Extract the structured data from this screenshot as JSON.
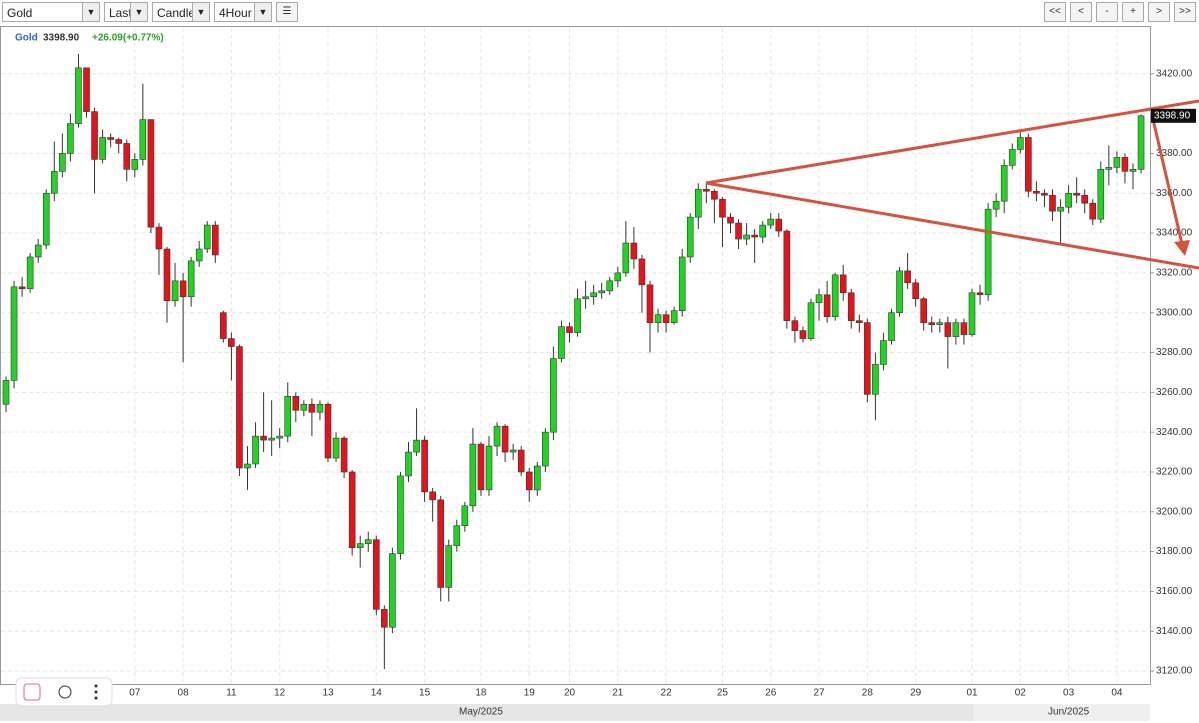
{
  "toolbar": {
    "symbol": "Gold",
    "price_field": "Last",
    "chart_style": "Candle",
    "interval": "4Hour",
    "nav_buttons": [
      "<<",
      "<",
      "-",
      "+",
      ">",
      ">>"
    ]
  },
  "chart_data": {
    "type": "candlestick",
    "header": {
      "symbol": "Gold",
      "last": "3398.90",
      "change": "+26.09(+0.77%)"
    },
    "categories": [
      null,
      null,
      null,
      null,
      null,
      null,
      null,
      null,
      null,
      null,
      null,
      null,
      null,
      null,
      null,
      null,
      "07",
      null,
      null,
      null,
      null,
      null,
      "08",
      null,
      null,
      null,
      null,
      null,
      "11",
      null,
      null,
      null,
      null,
      null,
      "12",
      null,
      null,
      null,
      null,
      null,
      "13",
      null,
      null,
      null,
      null,
      null,
      "14",
      null,
      null,
      null,
      null,
      null,
      "15",
      null,
      null,
      null,
      null,
      null,
      null,
      "18",
      null,
      null,
      null,
      null,
      null,
      "19",
      null,
      null,
      null,
      null,
      "20",
      null,
      null,
      null,
      null,
      null,
      "21",
      null,
      null,
      null,
      null,
      null,
      "22",
      null,
      null,
      null,
      null,
      null,
      null,
      "25",
      null,
      null,
      null,
      null,
      null,
      "26",
      null,
      null,
      null,
      null,
      null,
      "27",
      null,
      null,
      null,
      null,
      null,
      "28",
      null,
      null,
      null,
      null,
      null,
      "29",
      null,
      null,
      null,
      null,
      null,
      null,
      "01",
      null,
      null,
      null,
      null,
      null,
      "02",
      null,
      null,
      null,
      null,
      null,
      "03",
      null,
      null,
      null,
      null,
      null,
      "04",
      null,
      null,
      null
    ],
    "periods": [
      {
        "label": "May/2025",
        "index": 59
      },
      {
        "label": "Jun/2025",
        "index": 132
      }
    ],
    "open": [
      3254,
      3266,
      3313,
      3312,
      3328,
      3334,
      3360,
      3371,
      3380,
      3395,
      3423,
      3401,
      3377,
      3388,
      3387,
      3385,
      3372,
      3377,
      3397,
      3343,
      3332,
      3306,
      3316,
      3308,
      3326,
      3332,
      3344,
      3300,
      3287,
      3283,
      3222,
      3224,
      3238,
      3236,
      3237,
      3238,
      3258,
      3251,
      3254,
      3250,
      3254,
      3227,
      3237,
      3220,
      3182,
      3184,
      3186,
      3151,
      3142,
      3179,
      3218,
      3230,
      3236,
      3210,
      3206,
      3162,
      3183,
      3193,
      3203,
      3234,
      3211,
      3233,
      3243,
      3230,
      3231,
      3220,
      3211,
      3223,
      3240,
      3277,
      3293,
      3290,
      3307,
      3308,
      3310,
      3311,
      3316,
      3320,
      3335,
      3327,
      3314,
      3295,
      3299,
      3295,
      3301,
      3328,
      3348,
      3362,
      3361,
      3357,
      3348,
      3345,
      3337,
      3339,
      3338,
      3344,
      3347,
      3341,
      3296,
      3291,
      3287,
      3305,
      3309,
      3298,
      3319,
      3310,
      3296,
      3295,
      3259,
      3274,
      3286,
      3300,
      3321,
      3315,
      3307,
      3295,
      3294,
      3295,
      3288,
      3295,
      3289,
      3310,
      3309,
      3352,
      3356,
      3374,
      3382,
      3388,
      3361,
      3360,
      3359,
      3351,
      3353,
      3360,
      3359,
      3355,
      3347,
      3372,
      3373,
      3378,
      3371,
      3372
    ],
    "high": [
      3268,
      3316,
      3318,
      3330,
      3337,
      3362,
      3386,
      3390,
      3400,
      3430,
      3423,
      3403,
      3392,
      3390,
      3388,
      3387,
      3380,
      3415,
      3397,
      3345,
      3333,
      3325,
      3320,
      3328,
      3336,
      3346,
      3346,
      3301,
      3290,
      3284,
      3233,
      3245,
      3260,
      3256,
      3242,
      3265,
      3260,
      3256,
      3257,
      3256,
      3255,
      3240,
      3238,
      3221,
      3188,
      3190,
      3188,
      3153,
      3182,
      3220,
      3235,
      3252,
      3238,
      3212,
      3208,
      3186,
      3196,
      3205,
      3242,
      3235,
      3238,
      3245,
      3244,
      3234,
      3233,
      3222,
      3225,
      3242,
      3283,
      3296,
      3295,
      3312,
      3316,
      3314,
      3315,
      3318,
      3323,
      3346,
      3343,
      3329,
      3316,
      3302,
      3301,
      3303,
      3332,
      3350,
      3365,
      3365,
      3362,
      3358,
      3350,
      3347,
      3345,
      3342,
      3346,
      3350,
      3350,
      3342,
      3298,
      3293,
      3307,
      3312,
      3316,
      3320,
      3324,
      3312,
      3299,
      3297,
      3280,
      3290,
      3302,
      3323,
      3330,
      3317,
      3308,
      3298,
      3297,
      3298,
      3297,
      3297,
      3312,
      3314,
      3355,
      3360,
      3377,
      3385,
      3391,
      3390,
      3366,
      3362,
      3362,
      3357,
      3364,
      3368,
      3362,
      3357,
      3376,
      3384,
      3381,
      3380,
      3375,
      3399.6
    ],
    "low": [
      3250,
      3262,
      3308,
      3310,
      3325,
      3332,
      3356,
      3368,
      3376,
      3393,
      3398,
      3360,
      3375,
      3383,
      3380,
      3366,
      3368,
      3374,
      3340,
      3319,
      3295,
      3303,
      3275,
      3303,
      3323,
      3330,
      3325,
      3285,
      3266,
      3218,
      3211,
      3222,
      3230,
      3228,
      3232,
      3235,
      3245,
      3248,
      3238,
      3246,
      3225,
      3225,
      3217,
      3178,
      3172,
      3180,
      3148,
      3121,
      3139,
      3176,
      3215,
      3228,
      3205,
      3195,
      3155,
      3155,
      3180,
      3190,
      3200,
      3208,
      3208,
      3228,
      3225,
      3226,
      3218,
      3205,
      3208,
      3220,
      3236,
      3275,
      3285,
      3288,
      3302,
      3304,
      3307,
      3309,
      3313,
      3318,
      3322,
      3300,
      3280,
      3290,
      3290,
      3294,
      3298,
      3325,
      3342,
      3355,
      3345,
      3333,
      3340,
      3332,
      3334,
      3325,
      3335,
      3342,
      3338,
      3292,
      3285,
      3285,
      3286,
      3296,
      3295,
      3296,
      3306,
      3292,
      3290,
      3255,
      3246,
      3271,
      3284,
      3298,
      3312,
      3303,
      3291,
      3290,
      3290,
      3272,
      3284,
      3284,
      3288,
      3304,
      3306,
      3348,
      3350,
      3372,
      3380,
      3358,
      3356,
      3353,
      3346,
      3335,
      3350,
      3355,
      3350,
      3344,
      3345,
      3364,
      3370,
      3365,
      3362,
      3370
    ],
    "close": [
      3266,
      3313,
      3312,
      3328,
      3334,
      3360,
      3371,
      3380,
      3395,
      3423,
      3401,
      3377,
      3388,
      3387,
      3385,
      3372,
      3377,
      3397,
      3343,
      3332,
      3306,
      3316,
      3308,
      3326,
      3332,
      3344,
      3329,
      3287,
      3283,
      3222,
      3224,
      3238,
      3236,
      3237,
      3238,
      3258,
      3251,
      3254,
      3250,
      3254,
      3227,
      3237,
      3220,
      3182,
      3184,
      3186,
      3151,
      3142,
      3179,
      3218,
      3230,
      3236,
      3210,
      3206,
      3162,
      3183,
      3193,
      3203,
      3234,
      3211,
      3233,
      3243,
      3230,
      3231,
      3220,
      3211,
      3223,
      3240,
      3277,
      3293,
      3290,
      3307,
      3308,
      3310,
      3311,
      3316,
      3320,
      3335,
      3327,
      3314,
      3295,
      3299,
      3295,
      3301,
      3328,
      3348,
      3362,
      3361,
      3357,
      3348,
      3345,
      3337,
      3339,
      3338,
      3344,
      3347,
      3341,
      3296,
      3291,
      3287,
      3305,
      3309,
      3298,
      3319,
      3310,
      3296,
      3295,
      3259,
      3274,
      3286,
      3300,
      3321,
      3315,
      3307,
      3295,
      3294,
      3295,
      3288,
      3295,
      3289,
      3310,
      3309,
      3352,
      3356,
      3374,
      3382,
      3388,
      3361,
      3360,
      3359,
      3351,
      3353,
      3360,
      3359,
      3355,
      3347,
      3372,
      3373,
      3378,
      3371,
      3372,
      3398.9
    ],
    "up_color": "#22d422",
    "down_color": "#e3141b",
    "ylim": [
      3113.5,
      3443
    ],
    "yticks": [
      {
        "value": 3120,
        "label": "3120.00"
      },
      {
        "value": 3140,
        "label": "3140.00"
      },
      {
        "value": 3160,
        "label": "3160.00"
      },
      {
        "value": 3180,
        "label": "3180.00"
      },
      {
        "value": 3200,
        "label": "3200.00"
      },
      {
        "value": 3220,
        "label": "3220.00"
      },
      {
        "value": 3240,
        "label": "3240.00"
      },
      {
        "value": 3260,
        "label": "3260.00"
      },
      {
        "value": 3280,
        "label": "3280.00"
      },
      {
        "value": 3300,
        "label": "3300.00"
      },
      {
        "value": 3320,
        "label": "3320.00"
      },
      {
        "value": 3340,
        "label": "3340.00"
      },
      {
        "value": 3360,
        "label": "3360.00"
      },
      {
        "value": 3380,
        "label": "3380.00"
      },
      {
        "value": 3400,
        "label": "3400.00"
      },
      {
        "value": 3420,
        "label": "3420.00"
      }
    ],
    "grid": true
  }
}
